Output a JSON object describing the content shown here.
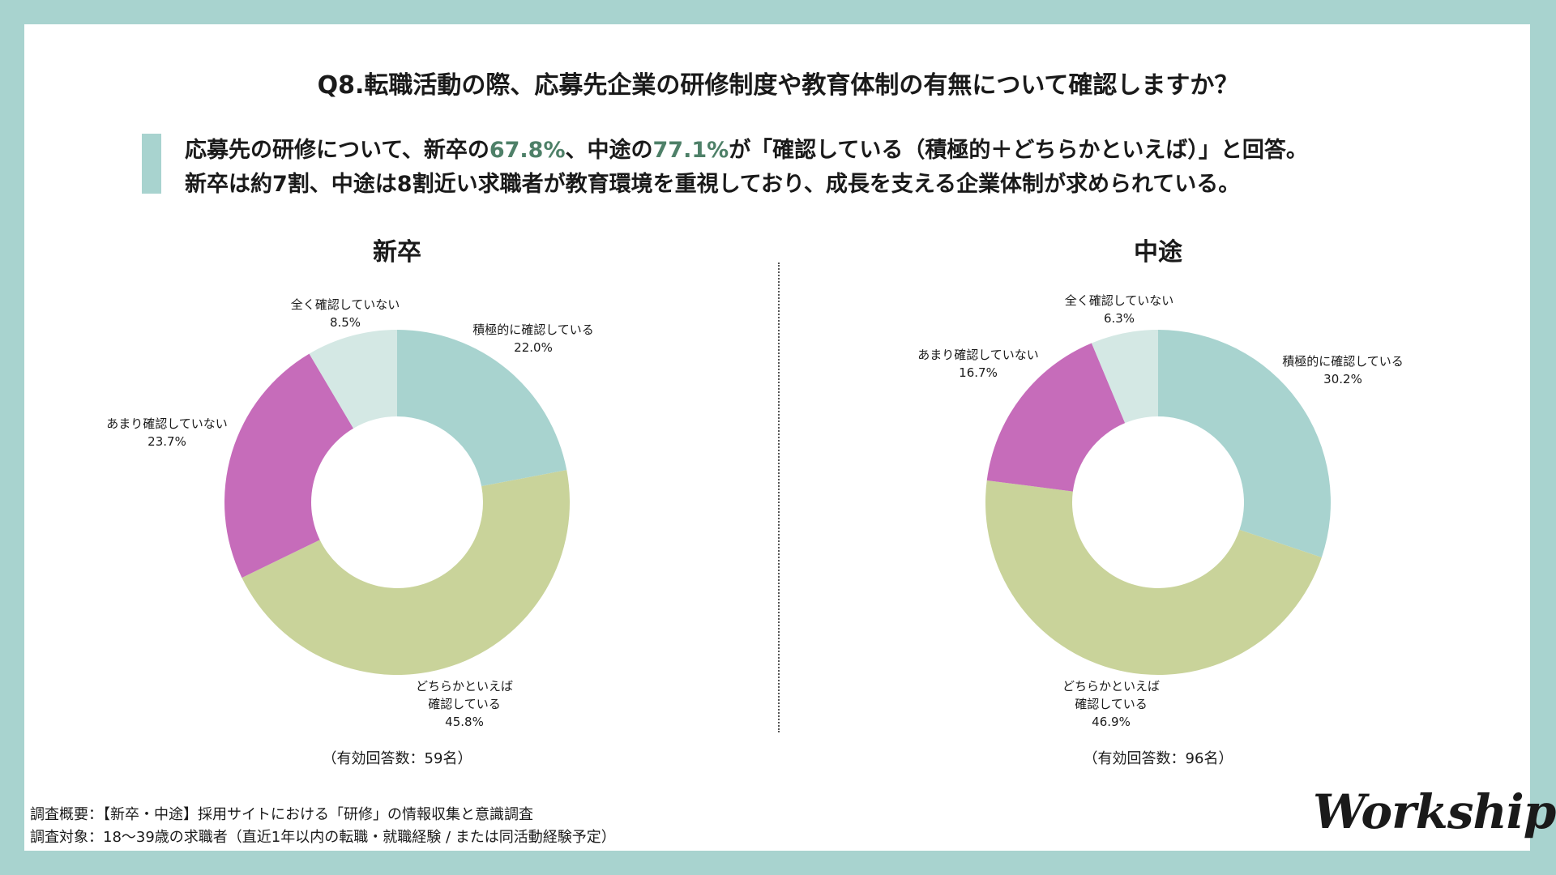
{
  "title": "Q8.転職活動の際、応募先企業の研修制度や教育体制の有無について確認しますか？",
  "summary": {
    "l1_a": "応募先の研修について、新卒の",
    "l1_b": "67.8%",
    "l1_c": "、中途の",
    "l1_d": "77.1%",
    "l1_e": "が「確認している（積極的＋どちらかといえば）」と回答。",
    "l2": "新卒は約7割、中途は8割近い求職者が教育環境を重視しており、成長を支える企業体制が求められている。"
  },
  "colors": {
    "accent": "#a8d3cf",
    "highlight": "#4e8068"
  },
  "chart_data": [
    {
      "type": "pie",
      "title": "新卒",
      "n_label": "（有効回答数：59名）",
      "categories": [
        "積極的に確認している",
        "どちらかといえば確認している",
        "あまり確認していない",
        "全く確認していない"
      ],
      "label_lines": [
        [
          "積極的に確認している"
        ],
        [
          "どちらかといえば",
          "確認している"
        ],
        [
          "あまり確認していない"
        ],
        [
          "全く確認していない"
        ]
      ],
      "values": [
        22.0,
        45.8,
        23.7,
        8.5
      ],
      "value_labels": [
        "22.0%",
        "45.8%",
        "23.7%",
        "8.5%"
      ],
      "colors": [
        "#a8d3cf",
        "#c9d39a",
        "#c66cba",
        "#d4e8e4"
      ]
    },
    {
      "type": "pie",
      "title": "中途",
      "n_label": "（有効回答数：96名）",
      "categories": [
        "積極的に確認している",
        "どちらかといえば確認している",
        "あまり確認していない",
        "全く確認していない"
      ],
      "label_lines": [
        [
          "積極的に確認している"
        ],
        [
          "どちらかといえば",
          "確認している"
        ],
        [
          "あまり確認していない"
        ],
        [
          "全く確認していない"
        ]
      ],
      "values": [
        30.2,
        46.9,
        16.7,
        6.3
      ],
      "value_labels": [
        "30.2%",
        "46.9%",
        "16.7%",
        "6.3%"
      ],
      "colors": [
        "#a8d3cf",
        "#c9d39a",
        "#c66cba",
        "#d4e8e4"
      ]
    }
  ],
  "footer": {
    "line1": "調査概要：【新卒・中途】採用サイトにおける「研修」の情報収集と意識調査",
    "line2": "調査対象：18〜39歳の求職者（直近1年以内の転職・就職経験 / または同活動経験予定）"
  },
  "logo": "Workship"
}
